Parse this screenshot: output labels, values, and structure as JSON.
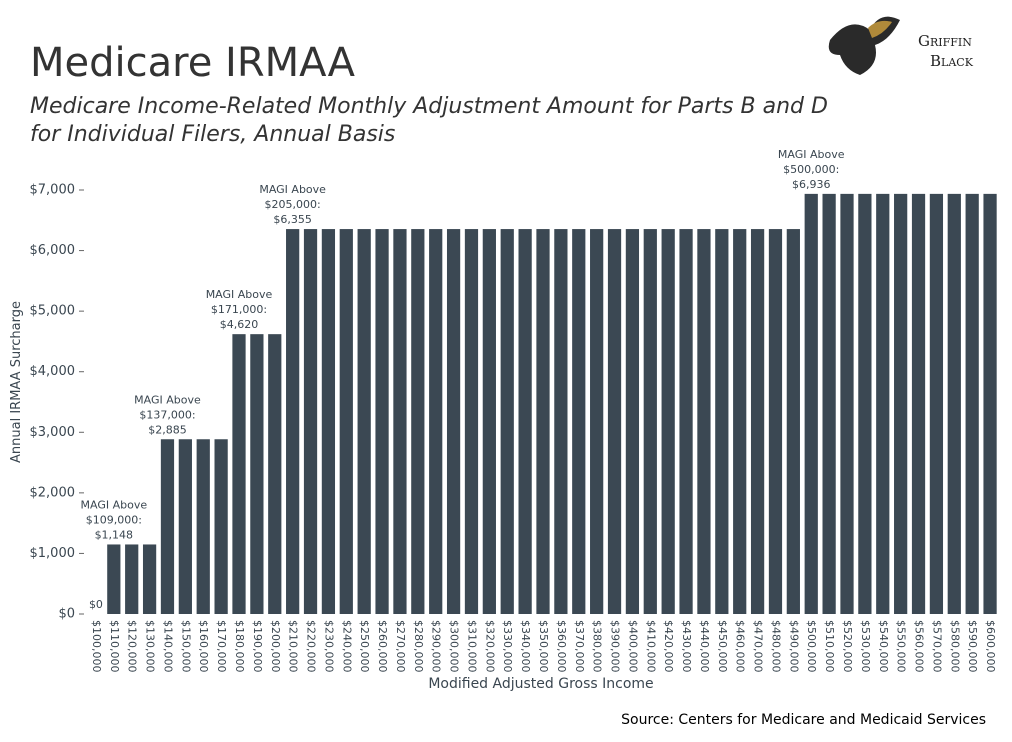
{
  "chart_data": {
    "type": "bar",
    "title": "Medicare IRMAA",
    "subtitle": [
      "Medicare Income-Related Monthly Adjustment Amount for Parts B and D",
      "for Individual Filers, Annual Basis"
    ],
    "x_label": "Modified Adjusted Gross Income",
    "y_label": "Annual IRMAA Surcharge",
    "source": "Source: Centers for Medicare and Medicaid Services",
    "logo": [
      "Griffin",
      "Black"
    ],
    "color": "#3b4853",
    "categories": [
      "$100,000",
      "$110,000",
      "$120,000",
      "$130,000",
      "$140,000",
      "$150,000",
      "$160,000",
      "$170,000",
      "$180,000",
      "$190,000",
      "$200,000",
      "$210,000",
      "$220,000",
      "$230,000",
      "$240,000",
      "$250,000",
      "$260,000",
      "$270,000",
      "$280,000",
      "$290,000",
      "$300,000",
      "$310,000",
      "$320,000",
      "$330,000",
      "$340,000",
      "$350,000",
      "$360,000",
      "$370,000",
      "$380,000",
      "$390,000",
      "$400,000",
      "$410,000",
      "$420,000",
      "$430,000",
      "$440,000",
      "$450,000",
      "$460,000",
      "$470,000",
      "$480,000",
      "$490,000",
      "$500,000",
      "$510,000",
      "$520,000",
      "$530,000",
      "$540,000",
      "$550,000",
      "$560,000",
      "$570,000",
      "$580,000",
      "$590,000",
      "$600,000"
    ],
    "values": [
      0,
      1148,
      1148,
      1148,
      2885,
      2885,
      2885,
      2885,
      4620,
      4620,
      4620,
      6355,
      6355,
      6355,
      6355,
      6355,
      6355,
      6355,
      6355,
      6355,
      6355,
      6355,
      6355,
      6355,
      6355,
      6355,
      6355,
      6355,
      6355,
      6355,
      6355,
      6355,
      6355,
      6355,
      6355,
      6355,
      6355,
      6355,
      6355,
      6355,
      6936,
      6936,
      6936,
      6936,
      6936,
      6936,
      6936,
      6936,
      6936,
      6936,
      6936
    ],
    "value_labels": [
      "$0",
      "MAGI Above\n$109,000:\n$1,148",
      null,
      null,
      "MAGI Above\n$137,000:\n$2,885",
      null,
      null,
      null,
      "MAGI Above\n$171,000:\n$4,620",
      null,
      null,
      "MAGI Above\n$205,000:\n$6,355",
      null,
      null,
      null,
      null,
      null,
      null,
      null,
      null,
      null,
      null,
      null,
      null,
      null,
      null,
      null,
      null,
      null,
      null,
      null,
      null,
      null,
      null,
      null,
      null,
      null,
      null,
      null,
      null,
      "MAGI Above\n$500,000:\n$6,936",
      null,
      null,
      null,
      null,
      null,
      null,
      null,
      null,
      null,
      null
    ],
    "ylim": [
      0,
      7000
    ],
    "yticks": [
      {
        "value": 0,
        "label": "$0"
      },
      {
        "value": 1000,
        "label": "$1,000"
      },
      {
        "value": 2000,
        "label": "$2,000"
      },
      {
        "value": 3000,
        "label": "$3,000"
      },
      {
        "value": 4000,
        "label": "$4,000"
      },
      {
        "value": 5000,
        "label": "$5,000"
      },
      {
        "value": 6000,
        "label": "$6,000"
      },
      {
        "value": 7000,
        "label": "$7,000"
      }
    ],
    "grid": false
  }
}
